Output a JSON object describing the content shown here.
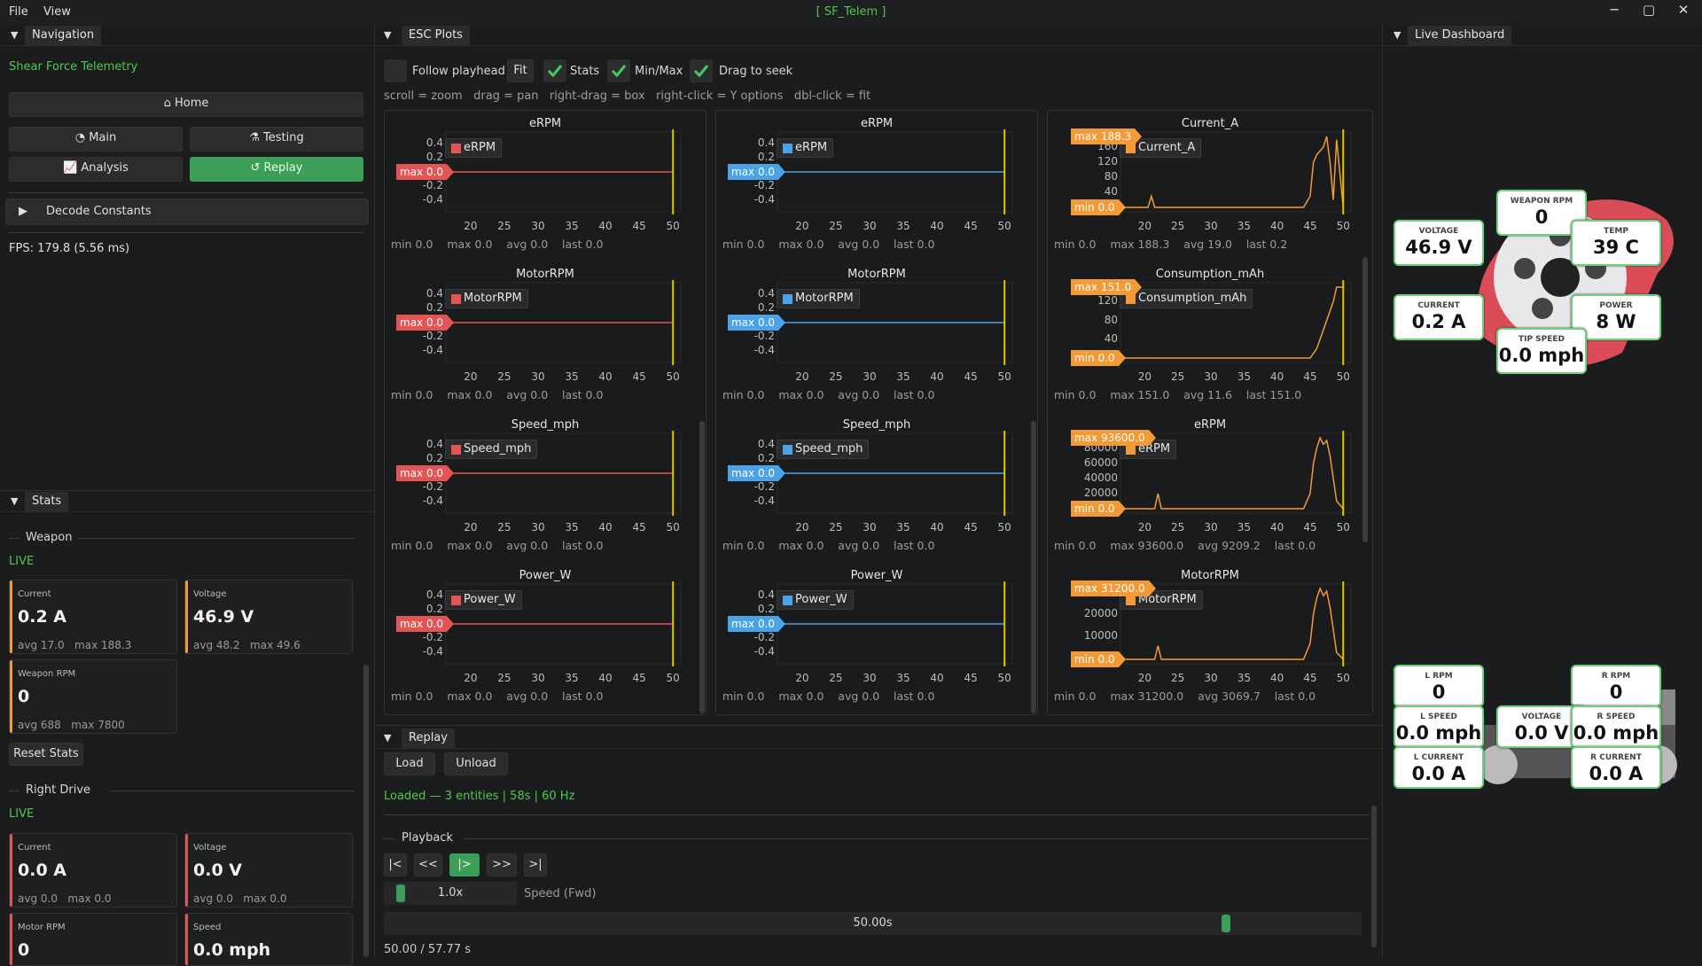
{
  "menu": {
    "file": "File",
    "view": "View",
    "title": "[ SF_Telem ]"
  },
  "window_controls": {
    "minimize": "─",
    "maximize": "▢",
    "close": "✕"
  },
  "navigation": {
    "tab": "Navigation",
    "app_name": "Shear Force Telemetry",
    "home": "Home",
    "main": "Main",
    "testing": "Testing",
    "analysis": "Analysis",
    "replay": "Replay",
    "decode": "Decode Constants",
    "fps": "FPS: 179.8 (5.56 ms)"
  },
  "stats": {
    "tab": "Stats",
    "weapon": {
      "title": "Weapon",
      "status": "LIVE",
      "current": {
        "label": "Current",
        "value": "0.2 A",
        "sub": "avg 17.0   max 188.3"
      },
      "voltage": {
        "label": "Voltage",
        "value": "46.9 V",
        "sub": "avg 48.2   max 49.6"
      },
      "rpm": {
        "label": "Weapon RPM",
        "value": "0",
        "sub": "avg 688   max 7800"
      }
    },
    "reset": "Reset Stats",
    "right_drive": {
      "title": "Right Drive",
      "status": "LIVE",
      "current": {
        "label": "Current",
        "value": "0.0 A",
        "sub": "avg 0.0   max 0.0"
      },
      "voltage": {
        "label": "Voltage",
        "value": "0.0 V",
        "sub": "avg 0.0   max 0.0"
      },
      "motor_rpm": {
        "label": "Motor RPM",
        "value": "0"
      },
      "speed": {
        "label": "Speed",
        "value": "0.0 mph"
      }
    },
    "colors": {
      "orange": "#f29b36",
      "red": "#e35454"
    }
  },
  "esc": {
    "tab": "ESC Plots",
    "follow": "Follow playhead",
    "fit": "Fit",
    "stats": "Stats",
    "minmax": "Min/Max",
    "drag": "Drag to seek",
    "hint": "scroll = zoom   drag = pan   right-drag = box   right-click = Y options   dbl-click = fit",
    "xticks": [
      "20",
      "25",
      "30",
      "35",
      "40",
      "45",
      "50"
    ]
  },
  "chart_data": [
    {
      "type": "line",
      "title": "eRPM",
      "series": [
        {
          "name": "eRPM",
          "color": "#e35454",
          "x": [
            17,
            50
          ],
          "y": [
            0,
            0
          ]
        }
      ],
      "yticks": [
        "0.4",
        "0.2",
        "0.0",
        "-0.2",
        "-0.4"
      ],
      "max_flag": "max 0.0",
      "stat": "min 0.0    max 0.0    avg 0.0    last 0.0"
    },
    {
      "type": "line",
      "title": "MotorRPM",
      "series": [
        {
          "name": "MotorRPM",
          "color": "#e35454",
          "x": [
            17,
            50
          ],
          "y": [
            0,
            0
          ]
        }
      ],
      "yticks": [
        "0.4",
        "0.2",
        "0.0",
        "-0.2",
        "-0.4"
      ],
      "max_flag": "max 0.0",
      "stat": "min 0.0    max 0.0    avg 0.0    last 0.0"
    },
    {
      "type": "line",
      "title": "Speed_mph",
      "series": [
        {
          "name": "Speed_mph",
          "color": "#e35454",
          "x": [
            17,
            50
          ],
          "y": [
            0,
            0
          ]
        }
      ],
      "yticks": [
        "0.4",
        "0.2",
        "0.0",
        "-0.2",
        "-0.4"
      ],
      "max_flag": "max 0.0",
      "stat": "min 0.0    max 0.0    avg 0.0    last 0.0"
    },
    {
      "type": "line",
      "title": "Power_W",
      "series": [
        {
          "name": "Power_W",
          "color": "#e35454",
          "x": [
            17,
            50
          ],
          "y": [
            0,
            0
          ]
        }
      ],
      "yticks": [
        "0.4",
        "0.2",
        "0.0",
        "-0.2",
        "-0.4"
      ],
      "max_flag": "max 0.0",
      "stat": "min 0.0    max 0.0    avg 0.0    last 0.0"
    },
    {
      "type": "line",
      "title": "eRPM",
      "series": [
        {
          "name": "eRPM",
          "color": "#4aa3e6",
          "x": [
            17,
            50
          ],
          "y": [
            0,
            0
          ]
        }
      ],
      "yticks": [
        "0.4",
        "0.2",
        "0.0",
        "-0.2",
        "-0.4"
      ],
      "max_flag": "max 0.0",
      "stat": "min 0.0    max 0.0    avg 0.0    last 0.0"
    },
    {
      "type": "line",
      "title": "MotorRPM",
      "series": [
        {
          "name": "MotorRPM",
          "color": "#4aa3e6",
          "x": [
            17,
            50
          ],
          "y": [
            0,
            0
          ]
        }
      ],
      "yticks": [
        "0.4",
        "0.2",
        "0.0",
        "-0.2",
        "-0.4"
      ],
      "max_flag": "max 0.0",
      "stat": "min 0.0    max 0.0    avg 0.0    last 0.0"
    },
    {
      "type": "line",
      "title": "Speed_mph",
      "series": [
        {
          "name": "Speed_mph",
          "color": "#4aa3e6",
          "x": [
            17,
            50
          ],
          "y": [
            0,
            0
          ]
        }
      ],
      "yticks": [
        "0.4",
        "0.2",
        "0.0",
        "-0.2",
        "-0.4"
      ],
      "max_flag": "max 0.0",
      "stat": "min 0.0    max 0.0    avg 0.0    last 0.0"
    },
    {
      "type": "line",
      "title": "Power_W",
      "series": [
        {
          "name": "Power_W",
          "color": "#4aa3e6",
          "x": [
            17,
            50
          ],
          "y": [
            0,
            0
          ]
        }
      ],
      "yticks": [
        "0.4",
        "0.2",
        "0.0",
        "-0.2",
        "-0.4"
      ],
      "max_flag": "max 0.0",
      "stat": "min 0.0    max 0.0    avg 0.0    last 0.0"
    },
    {
      "type": "line",
      "title": "Current_A",
      "series": [
        {
          "name": "Current_A",
          "color": "#f29b36",
          "x": [
            17,
            20.5,
            21,
            21.5,
            22,
            44,
            45,
            45.5,
            46,
            46.5,
            47,
            47.5,
            48,
            48.5,
            49,
            50
          ],
          "y": [
            0,
            0,
            30,
            0,
            0,
            0,
            30,
            120,
            140,
            150,
            160,
            188.3,
            120,
            20,
            180,
            0
          ]
        }
      ],
      "ylim": [
        0,
        188.3
      ],
      "yticks": [
        "160",
        "120",
        "80",
        "40"
      ],
      "max_flag": "max 188.3",
      "min_flag": "min 0.0",
      "stat": "min 0.0    max 188.3    avg 19.0    last 0.2"
    },
    {
      "type": "line",
      "title": "Consumption_mAh",
      "series": [
        {
          "name": "Consumption_mAh",
          "color": "#f29b36",
          "x": [
            17,
            45,
            45.5,
            46,
            46.5,
            47,
            47.5,
            48,
            48.5,
            49,
            50
          ],
          "y": [
            0,
            0,
            10,
            20,
            40,
            60,
            80,
            100,
            120,
            151,
            151
          ]
        }
      ],
      "ylim": [
        0,
        151
      ],
      "yticks": [
        "120",
        "80",
        "40"
      ],
      "max_flag": "max 151.0",
      "min_flag": "min 0.0",
      "stat": "min 0.0    max 151.0    avg 11.6    last 151.0"
    },
    {
      "type": "line",
      "title": "eRPM",
      "series": [
        {
          "name": "eRPM",
          "color": "#f29b36",
          "x": [
            17,
            21.5,
            22,
            22.5,
            44,
            45,
            45.5,
            46,
            46.5,
            47,
            47.5,
            48,
            48.5,
            49,
            50
          ],
          "y": [
            0,
            0,
            20000,
            0,
            0,
            20000,
            60000,
            80000,
            93600,
            85000,
            90000,
            70000,
            40000,
            10000,
            0
          ]
        }
      ],
      "ylim": [
        0,
        93600
      ],
      "yticks": [
        "80000",
        "60000",
        "40000",
        "20000"
      ],
      "max_flag": "max 93600.0",
      "min_flag": "min 0.0",
      "stat": "min 0.0    max 93600.0    avg 9209.2    last 0.0"
    },
    {
      "type": "line",
      "title": "MotorRPM",
      "series": [
        {
          "name": "MotorRPM",
          "color": "#f29b36",
          "x": [
            17,
            21.5,
            22,
            22.5,
            44,
            45,
            45.5,
            46,
            46.5,
            47,
            47.5,
            48,
            48.5,
            49,
            50
          ],
          "y": [
            0,
            0,
            6000,
            0,
            0,
            7000,
            20000,
            27000,
            31200,
            28000,
            30000,
            23000,
            13000,
            3000,
            0
          ]
        }
      ],
      "ylim": [
        0,
        31200
      ],
      "yticks": [
        "20000",
        "10000"
      ],
      "max_flag": "max 31200.0",
      "min_flag": "min 0.0",
      "stat": "min 0.0    max 31200.0    avg 3069.7    last 0.0"
    }
  ],
  "replay": {
    "tab": "Replay",
    "load": "Load",
    "unload": "Unload",
    "status": "Loaded — 3 entities | 58s | 60 Hz",
    "playback": "Playback",
    "controls": [
      "|<",
      "<<",
      "|>",
      ">>",
      ">|"
    ],
    "speed_value": "1.0x",
    "speed_label": "Speed (Fwd)",
    "time_value": "50.00s",
    "time_progress": 0.865,
    "time_text": "50.00 / 57.77 s"
  },
  "dashboard": {
    "tab": "Live Dashboard",
    "weapon_rpm": {
      "label": "WEAPON RPM",
      "value": "0"
    },
    "voltage": {
      "label": "VOLTAGE",
      "value": "46.9 V"
    },
    "temp": {
      "label": "TEMP",
      "value": "39 C"
    },
    "current": {
      "label": "CURRENT",
      "value": "0.2 A"
    },
    "power": {
      "label": "POWER",
      "value": "8 W"
    },
    "tip_speed": {
      "label": "TIP SPEED",
      "value": "0.0 mph"
    },
    "l_rpm": {
      "label": "L RPM",
      "value": "0"
    },
    "r_rpm": {
      "label": "R RPM",
      "value": "0"
    },
    "l_speed": {
      "label": "L SPEED",
      "value": "0.0 mph"
    },
    "r_speed": {
      "label": "R SPEED",
      "value": "0.0 mph"
    },
    "d_voltage": {
      "label": "VOLTAGE",
      "value": "0.0 V"
    },
    "l_current": {
      "label": "L CURRENT",
      "value": "0.0 A"
    },
    "r_current": {
      "label": "R CURRENT",
      "value": "0.0 A"
    }
  }
}
